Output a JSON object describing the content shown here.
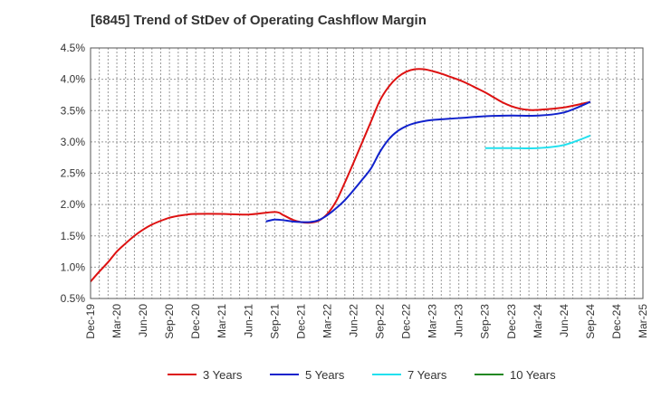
{
  "chart_data": {
    "type": "line",
    "title": "[6845]  Trend of StDev of Operating Cashflow Margin",
    "xlabel": "",
    "ylabel": "",
    "ylim": [
      0.5,
      4.5
    ],
    "y_ticks": [
      "0.5%",
      "1.0%",
      "1.5%",
      "2.0%",
      "2.5%",
      "3.0%",
      "3.5%",
      "4.0%",
      "4.5%"
    ],
    "x_ticks": [
      "Dec-19",
      "Mar-20",
      "Jun-20",
      "Sep-20",
      "Dec-20",
      "Mar-21",
      "Jun-21",
      "Sep-21",
      "Dec-21",
      "Mar-22",
      "Jun-22",
      "Sep-22",
      "Dec-22",
      "Mar-23",
      "Jun-23",
      "Sep-23",
      "Dec-23",
      "Mar-24",
      "Jun-24",
      "Sep-24",
      "Dec-24",
      "Mar-25"
    ],
    "x_range": [
      "Dec-19",
      "Mar-25"
    ],
    "grid": true,
    "legend_position": "bottom",
    "series": [
      {
        "name": "3 Years",
        "color": "#dd1111",
        "x": [
          "Dec-19",
          "Jan-20",
          "Feb-20",
          "Mar-20",
          "Apr-20",
          "May-20",
          "Jun-20",
          "Jul-20",
          "Aug-20",
          "Sep-20",
          "Oct-20",
          "Nov-20",
          "Dec-20",
          "Mar-21",
          "Jun-21",
          "Sep-21",
          "Oct-21",
          "Nov-21",
          "Dec-21",
          "Jan-22",
          "Feb-22",
          "Mar-22",
          "Apr-22",
          "May-22",
          "Jun-22",
          "Jul-22",
          "Aug-22",
          "Sep-22",
          "Oct-22",
          "Nov-22",
          "Dec-22",
          "Jan-23",
          "Feb-23",
          "Mar-23",
          "Apr-23",
          "May-23",
          "Jun-23",
          "Jul-23",
          "Aug-23",
          "Sep-23",
          "Oct-23",
          "Nov-23",
          "Dec-23",
          "Jan-24",
          "Feb-24",
          "Mar-24",
          "Jun-24",
          "Sep-24"
        ],
        "values": [
          0.77,
          0.93,
          1.08,
          1.25,
          1.38,
          1.5,
          1.6,
          1.68,
          1.74,
          1.79,
          1.82,
          1.84,
          1.85,
          1.85,
          1.84,
          1.88,
          1.83,
          1.76,
          1.72,
          1.71,
          1.74,
          1.85,
          2.05,
          2.35,
          2.67,
          3.0,
          3.33,
          3.66,
          3.88,
          4.03,
          4.12,
          4.16,
          4.16,
          4.13,
          4.09,
          4.04,
          3.99,
          3.93,
          3.86,
          3.79,
          3.71,
          3.63,
          3.57,
          3.53,
          3.51,
          3.51,
          3.55,
          3.64
        ]
      },
      {
        "name": "5 Years",
        "color": "#1122cc",
        "x": [
          "Aug-21",
          "Sep-21",
          "Oct-21",
          "Nov-21",
          "Dec-21",
          "Jan-22",
          "Feb-22",
          "Mar-22",
          "Apr-22",
          "May-22",
          "Jun-22",
          "Jul-22",
          "Aug-22",
          "Sep-22",
          "Oct-22",
          "Nov-22",
          "Dec-22",
          "Jan-23",
          "Feb-23",
          "Mar-23",
          "Jun-23",
          "Sep-23",
          "Dec-23",
          "Mar-24",
          "Jun-24",
          "Sep-24"
        ],
        "values": [
          1.73,
          1.76,
          1.75,
          1.73,
          1.72,
          1.72,
          1.75,
          1.83,
          1.94,
          2.07,
          2.23,
          2.4,
          2.58,
          2.84,
          3.04,
          3.17,
          3.25,
          3.3,
          3.33,
          3.35,
          3.38,
          3.41,
          3.42,
          3.42,
          3.47,
          3.64
        ]
      },
      {
        "name": "7 Years",
        "color": "#22e0ee",
        "x": [
          "Sep-23",
          "Dec-23",
          "Mar-24",
          "Jun-24",
          "Sep-24"
        ],
        "values": [
          2.9,
          2.9,
          2.9,
          2.95,
          3.1
        ]
      },
      {
        "name": "10 Years",
        "color": "#228822",
        "x": [],
        "values": []
      }
    ]
  },
  "frame": {
    "plot_border_color": "#555555",
    "grid_color": "#999999"
  }
}
